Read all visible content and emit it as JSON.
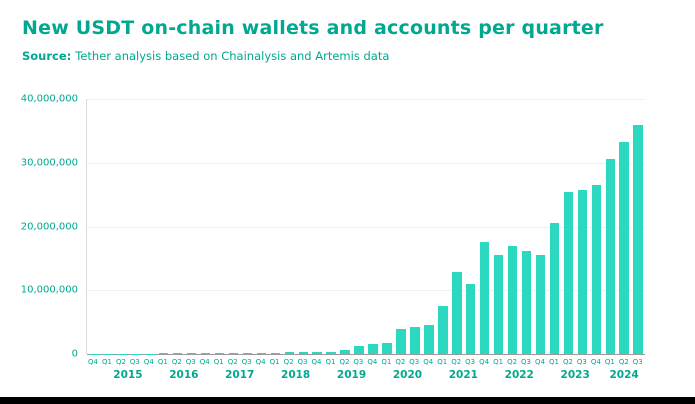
{
  "source": {
    "label": "Source:",
    "text": "Tether analysis based on Chainalysis and Artemis data"
  },
  "colors": {
    "accent_text": "#00a88f",
    "bar": "#2dd8c0",
    "axis_line": "#9b9b9b",
    "grid_line": "#f1f1f1",
    "background": "#ffffff",
    "bottom_strip": "#000000"
  },
  "chart_data": {
    "type": "bar",
    "title": "New USDT on-chain wallets and accounts per quarter",
    "subtitle": "Source: Tether analysis based on Chainalysis and Artemis data",
    "xlabel": "",
    "ylabel": "",
    "ylim": [
      0,
      40000000
    ],
    "y_ticks": [
      "40,000,000",
      "30,000,000",
      "20,000,000",
      "10,000,000",
      "0"
    ],
    "grid": "horizontal-faint",
    "legend": "none",
    "groups": [
      {
        "year": "",
        "quarters": [
          "Q4"
        ]
      },
      {
        "year": "2015",
        "quarters": [
          "Q1",
          "Q2",
          "Q3",
          "Q4"
        ]
      },
      {
        "year": "2016",
        "quarters": [
          "Q1",
          "Q2",
          "Q3",
          "Q4"
        ]
      },
      {
        "year": "2017",
        "quarters": [
          "Q1",
          "Q2",
          "Q3",
          "Q4"
        ]
      },
      {
        "year": "2018",
        "quarters": [
          "Q1",
          "Q2",
          "Q3",
          "Q4"
        ]
      },
      {
        "year": "2019",
        "quarters": [
          "Q1",
          "Q2",
          "Q3",
          "Q4"
        ]
      },
      {
        "year": "2020",
        "quarters": [
          "Q1",
          "Q2",
          "Q3",
          "Q4"
        ]
      },
      {
        "year": "2021",
        "quarters": [
          "Q1",
          "Q2",
          "Q3",
          "Q4"
        ]
      },
      {
        "year": "2022",
        "quarters": [
          "Q1",
          "Q2",
          "Q3",
          "Q4"
        ]
      },
      {
        "year": "2023",
        "quarters": [
          "Q1",
          "Q2",
          "Q3",
          "Q4"
        ]
      },
      {
        "year": "2024",
        "quarters": [
          "Q1",
          "Q2",
          "Q3"
        ]
      }
    ],
    "values": [
      50000,
      60000,
      60000,
      70000,
      80000,
      90000,
      100000,
      110000,
      120000,
      140000,
      160000,
      180000,
      200000,
      220000,
      240000,
      260000,
      280000,
      350000,
      600000,
      1200000,
      1500000,
      1700000,
      3900000,
      4300000,
      4600000,
      7600000,
      12800000,
      11000000,
      17600000,
      15600000,
      16900000,
      16100000,
      15600000,
      20600000,
      25400000,
      25700000,
      26500000,
      30600000,
      33200000,
      36000000
    ]
  }
}
